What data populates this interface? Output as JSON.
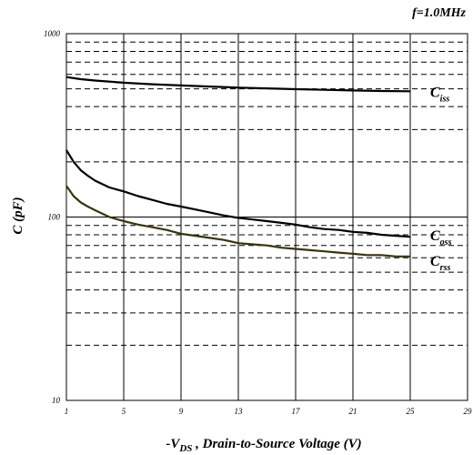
{
  "chart_data": {
    "type": "line",
    "annotation": "f=1.0MHz",
    "xlabel_prefix": "-V",
    "xlabel_sub": "DS",
    "xlabel_suffix": " , Drain-to-Source Voltage (V)",
    "ylabel": "C (pF)",
    "x_scale": "linear",
    "y_scale": "log",
    "xlim": [
      1,
      29
    ],
    "ylim": [
      10,
      1000
    ],
    "x_ticks": [
      "1",
      "5",
      "9",
      "13",
      "17",
      "21",
      "25",
      "29"
    ],
    "y_ticks": [
      "10",
      "100",
      "1000"
    ],
    "grid": true,
    "series": [
      {
        "name": "C",
        "sub": "iss",
        "color": "#000000",
        "x": [
          1,
          2,
          3,
          5,
          7,
          9,
          11,
          13,
          15,
          17,
          19,
          21,
          23,
          25
        ],
        "y": [
          580,
          565,
          555,
          540,
          530,
          522,
          515,
          508,
          503,
          498,
          494,
          490,
          487,
          485
        ]
      },
      {
        "name": "C",
        "sub": "oss",
        "color": "#000000",
        "x": [
          1,
          1.5,
          2,
          2.5,
          3,
          4,
          5,
          6,
          7,
          8,
          9,
          10,
          11,
          12,
          13,
          14,
          15,
          16,
          17,
          18,
          19,
          20,
          21,
          22,
          23,
          24,
          25
        ],
        "y": [
          232,
          200,
          180,
          168,
          158,
          145,
          138,
          130,
          124,
          118,
          114,
          110,
          106,
          102,
          99,
          97,
          95,
          93,
          91,
          88,
          86,
          85,
          83,
          82,
          80,
          79,
          78
        ]
      },
      {
        "name": "C",
        "sub": "rss",
        "color": "#3a3410",
        "x": [
          1,
          1.5,
          2,
          2.5,
          3,
          4,
          5,
          6,
          7,
          8,
          9,
          10,
          11,
          12,
          13,
          14,
          15,
          16,
          17,
          18,
          19,
          20,
          21,
          22,
          23,
          24,
          25
        ],
        "y": [
          148,
          130,
          120,
          114,
          109,
          100,
          95,
          91,
          88,
          85,
          81,
          79,
          77,
          75,
          72,
          71,
          70,
          68,
          67,
          66,
          65,
          64,
          63,
          62,
          62,
          61,
          61
        ]
      }
    ]
  }
}
